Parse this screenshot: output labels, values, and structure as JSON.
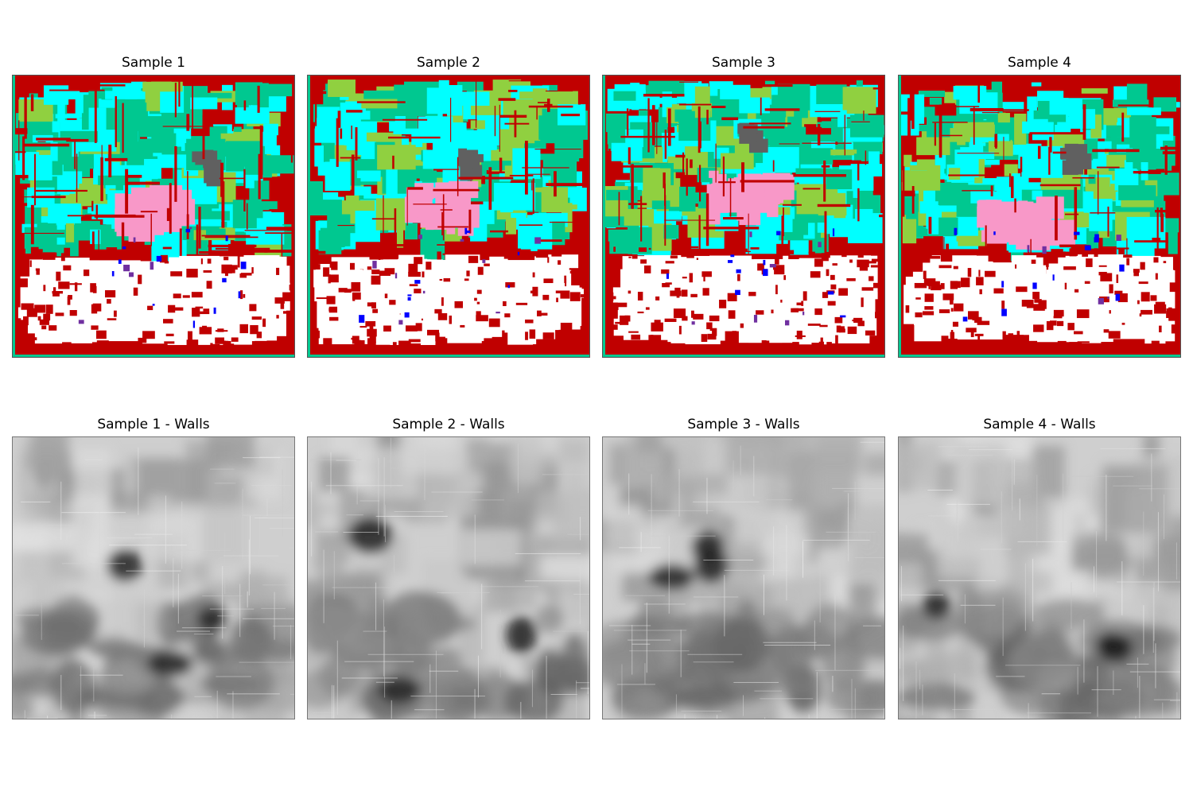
{
  "figure": {
    "panels": [
      {
        "title": "Sample 1",
        "type": "segmentation-map",
        "seed": 11
      },
      {
        "title": "Sample 2",
        "type": "segmentation-map",
        "seed": 23
      },
      {
        "title": "Sample 3",
        "type": "segmentation-map",
        "seed": 37
      },
      {
        "title": "Sample 4",
        "type": "segmentation-map",
        "seed": 41
      },
      {
        "title": "Sample 1 - Walls",
        "type": "grayscale-heatmap",
        "seed": 53
      },
      {
        "title": "Sample 2 - Walls",
        "type": "grayscale-heatmap",
        "seed": 67
      },
      {
        "title": "Sample 3 - Walls",
        "type": "grayscale-heatmap",
        "seed": 79
      },
      {
        "title": "Sample 4 - Walls",
        "type": "grayscale-heatmap",
        "seed": 83
      }
    ],
    "segmentation_colors": {
      "background": "#c00000",
      "cyan": "#00ffff",
      "teal": "#00c890",
      "lime": "#90d040",
      "pink": "#f898c8",
      "gray": "#606060",
      "white": "#ffffff",
      "blue": "#0000ff",
      "purple": "#7030a0"
    }
  }
}
